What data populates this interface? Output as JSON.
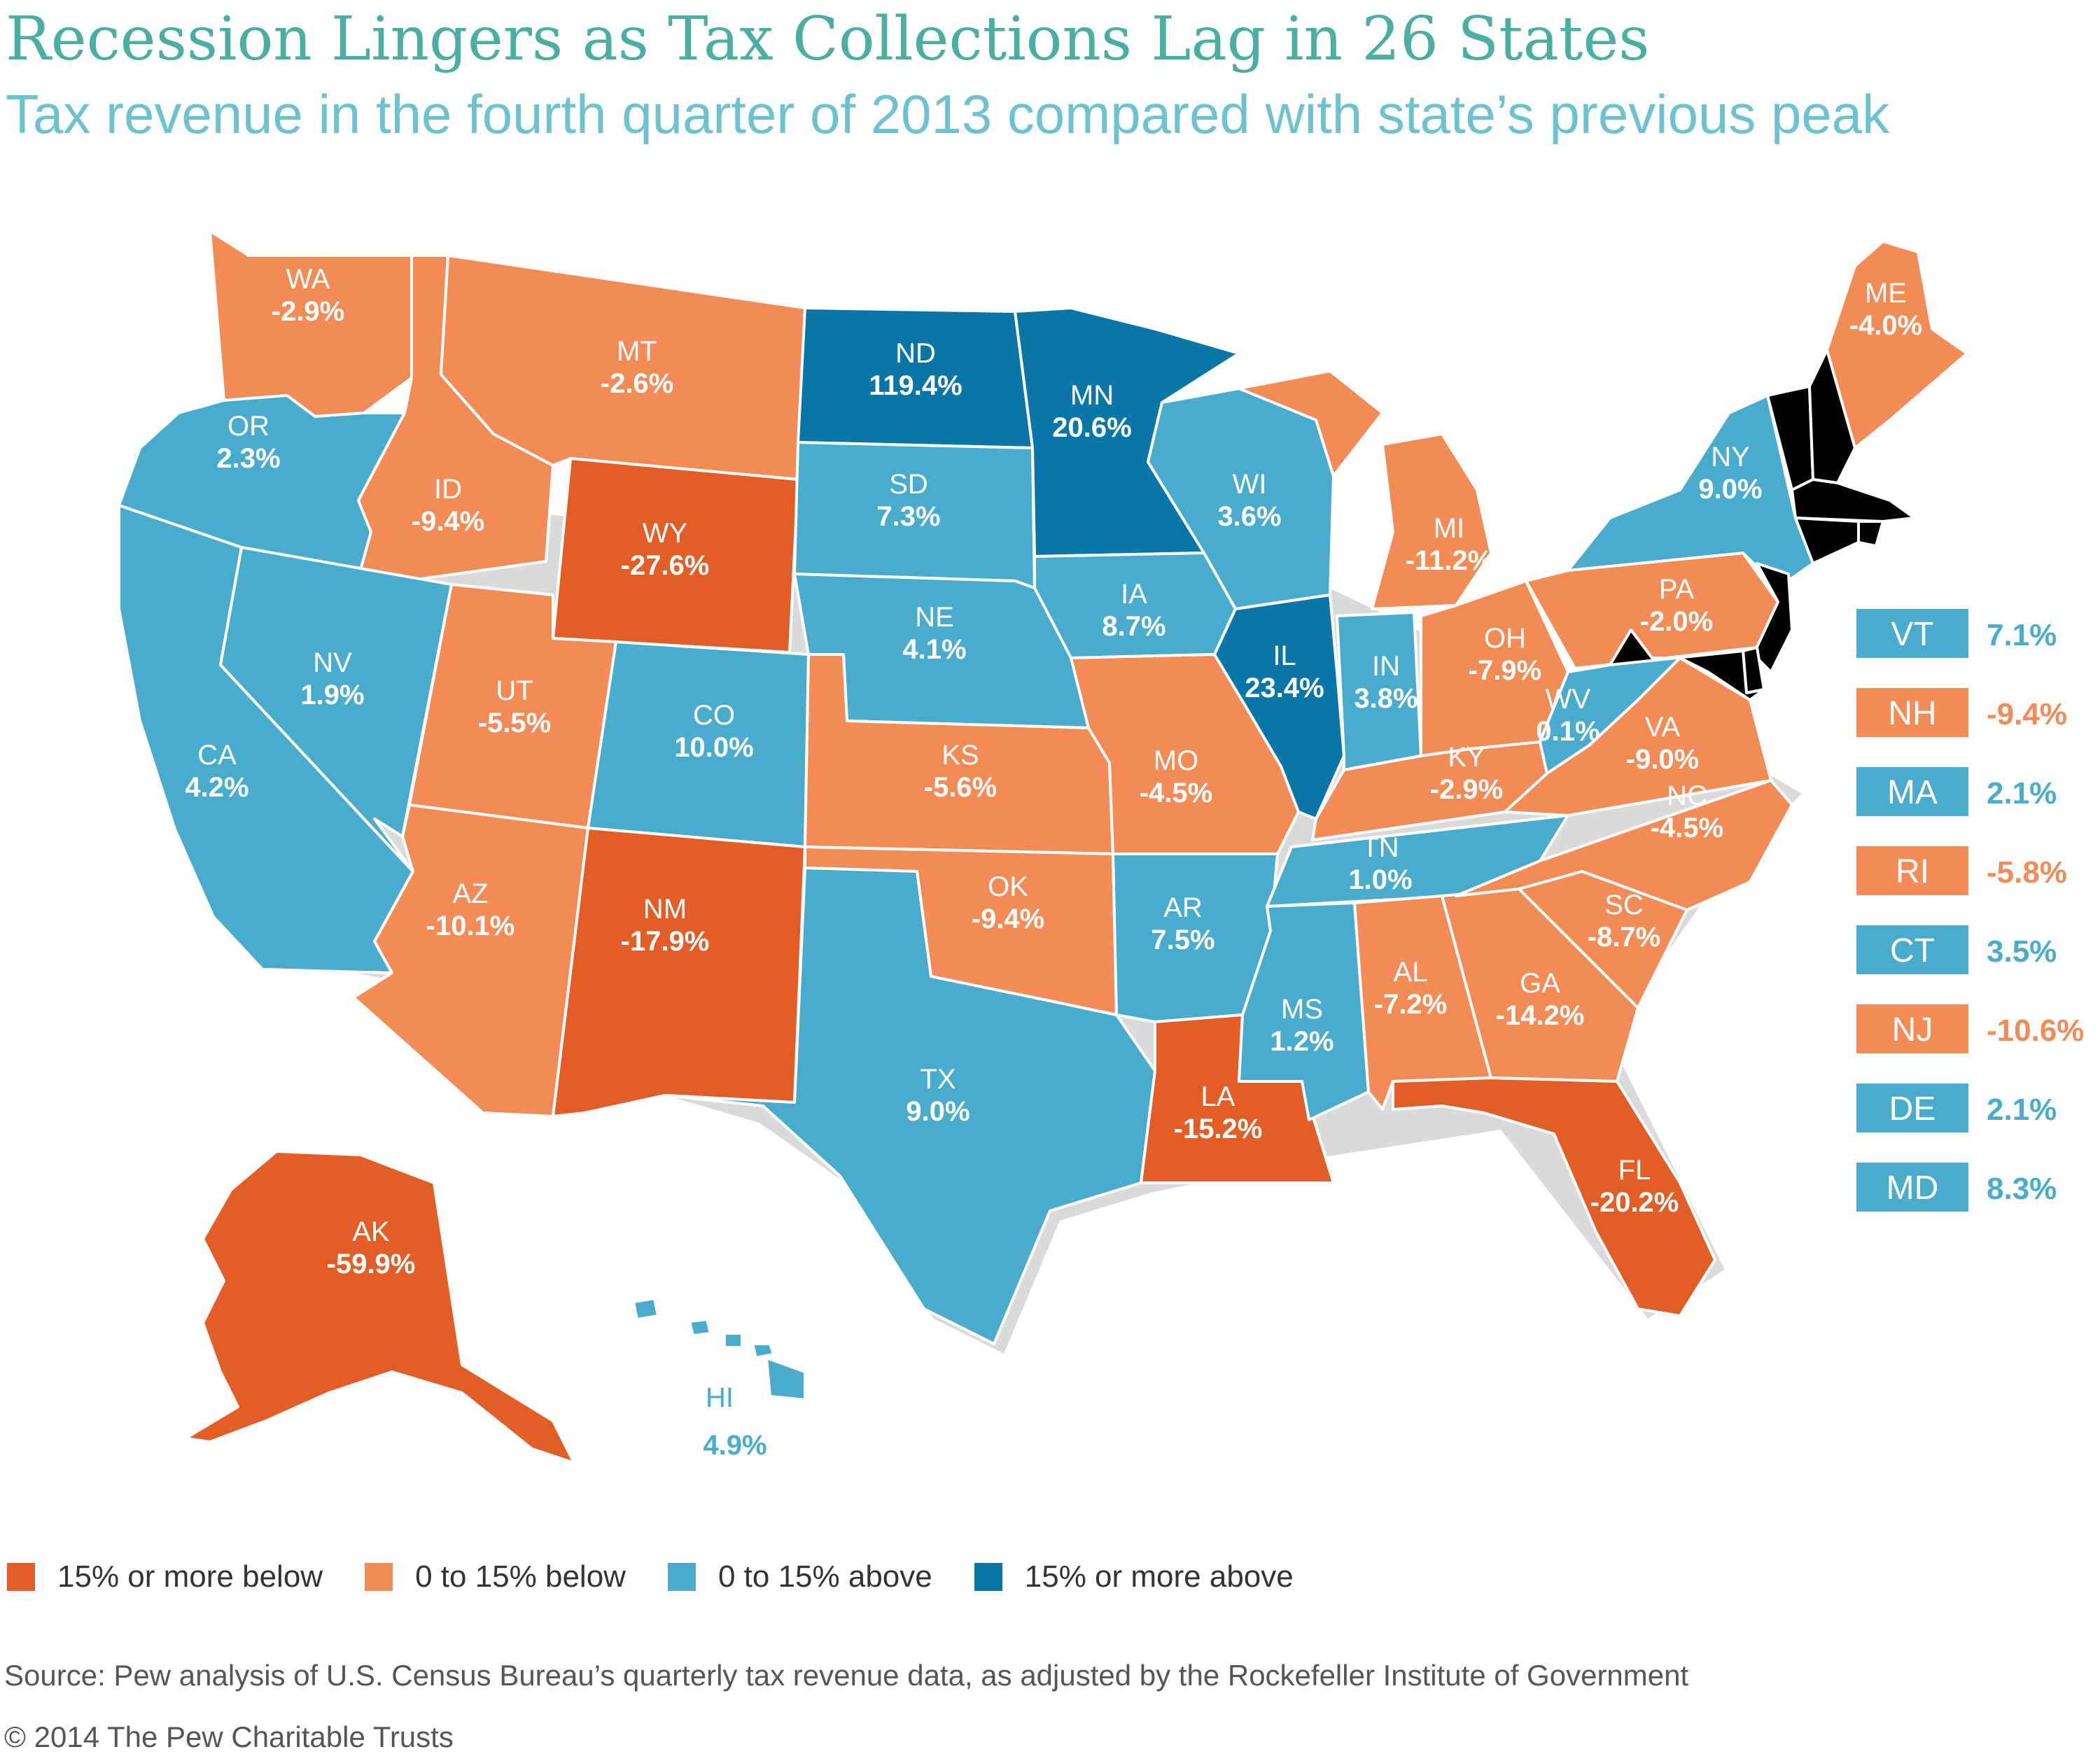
{
  "title": "Recession Lingers as Tax Collections Lag in 26 States",
  "subtitle": "Tax revenue in the fourth quarter of 2013 compared with state’s previous peak",
  "colors": {
    "15_or_more_below": "#e35e26",
    "0_to_15_below": "#f28b56",
    "0_to_15_above": "#4aaccd",
    "15_or_more_above": "#0a76a8"
  },
  "legend": [
    {
      "label": "15% or more below",
      "category": "15_or_more_below"
    },
    {
      "label": "0 to 15% below",
      "category": "0_to_15_below"
    },
    {
      "label": "0 to 15% above",
      "category": "0_to_15_above"
    },
    {
      "label": "15% or more above",
      "category": "15_or_more_above"
    }
  ],
  "states": {
    "WA": {
      "label": "WA",
      "value": "-2.9%",
      "category": "0_to_15_below"
    },
    "OR": {
      "label": "OR",
      "value": "2.3%",
      "category": "0_to_15_above"
    },
    "CA": {
      "label": "CA",
      "value": "4.2%",
      "category": "0_to_15_above"
    },
    "ID": {
      "label": "ID",
      "value": "-9.4%",
      "category": "0_to_15_below"
    },
    "NV": {
      "label": "NV",
      "value": "1.9%",
      "category": "0_to_15_above"
    },
    "MT": {
      "label": "MT",
      "value": "-2.6%",
      "category": "0_to_15_below"
    },
    "WY": {
      "label": "WY",
      "value": "-27.6%",
      "category": "15_or_more_below"
    },
    "UT": {
      "label": "UT",
      "value": "-5.5%",
      "category": "0_to_15_below"
    },
    "AZ": {
      "label": "AZ",
      "value": "-10.1%",
      "category": "0_to_15_below"
    },
    "CO": {
      "label": "CO",
      "value": "10.0%",
      "category": "0_to_15_above"
    },
    "NM": {
      "label": "NM",
      "value": "-17.9%",
      "category": "15_or_more_below"
    },
    "ND": {
      "label": "ND",
      "value": "119.4%",
      "category": "15_or_more_above"
    },
    "SD": {
      "label": "SD",
      "value": "7.3%",
      "category": "0_to_15_above"
    },
    "NE": {
      "label": "NE",
      "value": "4.1%",
      "category": "0_to_15_above"
    },
    "KS": {
      "label": "KS",
      "value": "-5.6%",
      "category": "0_to_15_below"
    },
    "OK": {
      "label": "OK",
      "value": "-9.4%",
      "category": "0_to_15_below"
    },
    "TX": {
      "label": "TX",
      "value": "9.0%",
      "category": "0_to_15_above"
    },
    "MN": {
      "label": "MN",
      "value": "20.6%",
      "category": "15_or_more_above"
    },
    "IA": {
      "label": "IA",
      "value": "8.7%",
      "category": "0_to_15_above"
    },
    "MO": {
      "label": "MO",
      "value": "-4.5%",
      "category": "0_to_15_below"
    },
    "AR": {
      "label": "AR",
      "value": "7.5%",
      "category": "0_to_15_above"
    },
    "LA": {
      "label": "LA",
      "value": "-15.2%",
      "category": "15_or_more_below"
    },
    "WI": {
      "label": "WI",
      "value": "3.6%",
      "category": "0_to_15_above"
    },
    "IL": {
      "label": "IL",
      "value": "23.4%",
      "category": "15_or_more_above"
    },
    "MI": {
      "label": "MI",
      "value": "-11.2%",
      "category": "0_to_15_below"
    },
    "IN": {
      "label": "IN",
      "value": "3.8%",
      "category": "0_to_15_above"
    },
    "OH": {
      "label": "OH",
      "value": "-7.9%",
      "category": "0_to_15_below"
    },
    "KY": {
      "label": "KY",
      "value": "-2.9%",
      "category": "0_to_15_below"
    },
    "TN": {
      "label": "TN",
      "value": "1.0%",
      "category": "0_to_15_above"
    },
    "MS": {
      "label": "MS",
      "value": "1.2%",
      "category": "0_to_15_above"
    },
    "AL": {
      "label": "AL",
      "value": "-7.2%",
      "category": "0_to_15_below"
    },
    "GA": {
      "label": "GA",
      "value": "-14.2%",
      "category": "0_to_15_below"
    },
    "FL": {
      "label": "FL",
      "value": "-20.2%",
      "category": "15_or_more_below"
    },
    "SC": {
      "label": "SC",
      "value": "-8.7%",
      "category": "0_to_15_below"
    },
    "NC": {
      "label": "NC",
      "value": "-4.5%",
      "category": "0_to_15_below"
    },
    "VA": {
      "label": "VA",
      "value": "-9.0%",
      "category": "0_to_15_below"
    },
    "WV": {
      "label": "WV",
      "value": "0.1%",
      "category": "0_to_15_above"
    },
    "PA": {
      "label": "PA",
      "value": "-2.0%",
      "category": "0_to_15_below"
    },
    "NY": {
      "label": "NY",
      "value": "9.0%",
      "category": "0_to_15_above"
    },
    "ME": {
      "label": "ME",
      "value": "-4.0%",
      "category": "0_to_15_below"
    },
    "AK": {
      "label": "AK",
      "value": "-59.9%",
      "category": "15_or_more_below"
    },
    "HI": {
      "label": "HI",
      "value": "4.9%",
      "category": "0_to_15_above"
    }
  },
  "northeast_callouts": [
    {
      "label": "VT",
      "value": "7.1%",
      "category": "0_to_15_above"
    },
    {
      "label": "NH",
      "value": "-9.4%",
      "category": "0_to_15_below"
    },
    {
      "label": "MA",
      "value": "2.1%",
      "category": "0_to_15_above"
    },
    {
      "label": "RI",
      "value": "-5.8%",
      "category": "0_to_15_below"
    },
    {
      "label": "CT",
      "value": "3.5%",
      "category": "0_to_15_above"
    },
    {
      "label": "NJ",
      "value": "-10.6%",
      "category": "0_to_15_below"
    },
    {
      "label": "DE",
      "value": "2.1%",
      "category": "0_to_15_above"
    },
    {
      "label": "MD",
      "value": "8.3%",
      "category": "0_to_15_above"
    }
  ],
  "source": "Source: Pew analysis of U.S. Census Bureau’s quarterly tax revenue data, as adjusted by the Rockefeller Institute of Government",
  "copyright": "© 2014 The Pew Charitable Trusts"
}
